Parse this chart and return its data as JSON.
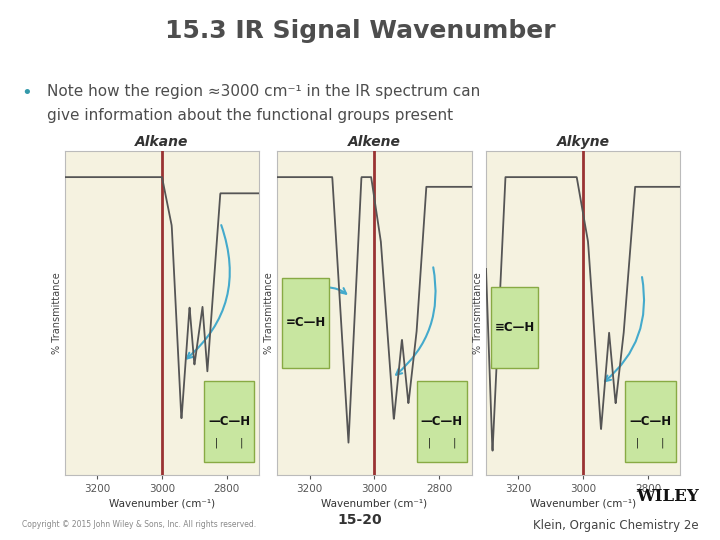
{
  "title": "15.3 IR Signal Wavenumber",
  "title_color": "#4d4d4d",
  "bullet_color": "#3399aa",
  "bullet_text_line1": "Note how the region ≈3000 cm⁻¹ in the IR spectrum can",
  "bullet_text_line2": "give information about the functional groups present",
  "bullet_text_color": "#4d4d4d",
  "panel_titles": [
    "Alkane",
    "Alkene",
    "Alkyne"
  ],
  "panel_bg_color": "#f5f2e0",
  "panel_border_color": "#bbbbbb",
  "red_line_color": "#993333",
  "ir_line_color": "#555555",
  "arrow_color": "#44aacc",
  "ch_box_color": "#c8e6a0",
  "ch_box_border": "#88aa44",
  "xlabel": "Wavenumber (cm⁻¹)",
  "footer_left": "Copyright © 2015 John Wiley & Sons, Inc. All rights reserved.",
  "footer_center": "15-20",
  "footer_right_line1": "WILEY",
  "footer_right_line2": "Klein, Organic Chemistry 2e",
  "bg_color": "#ffffff"
}
